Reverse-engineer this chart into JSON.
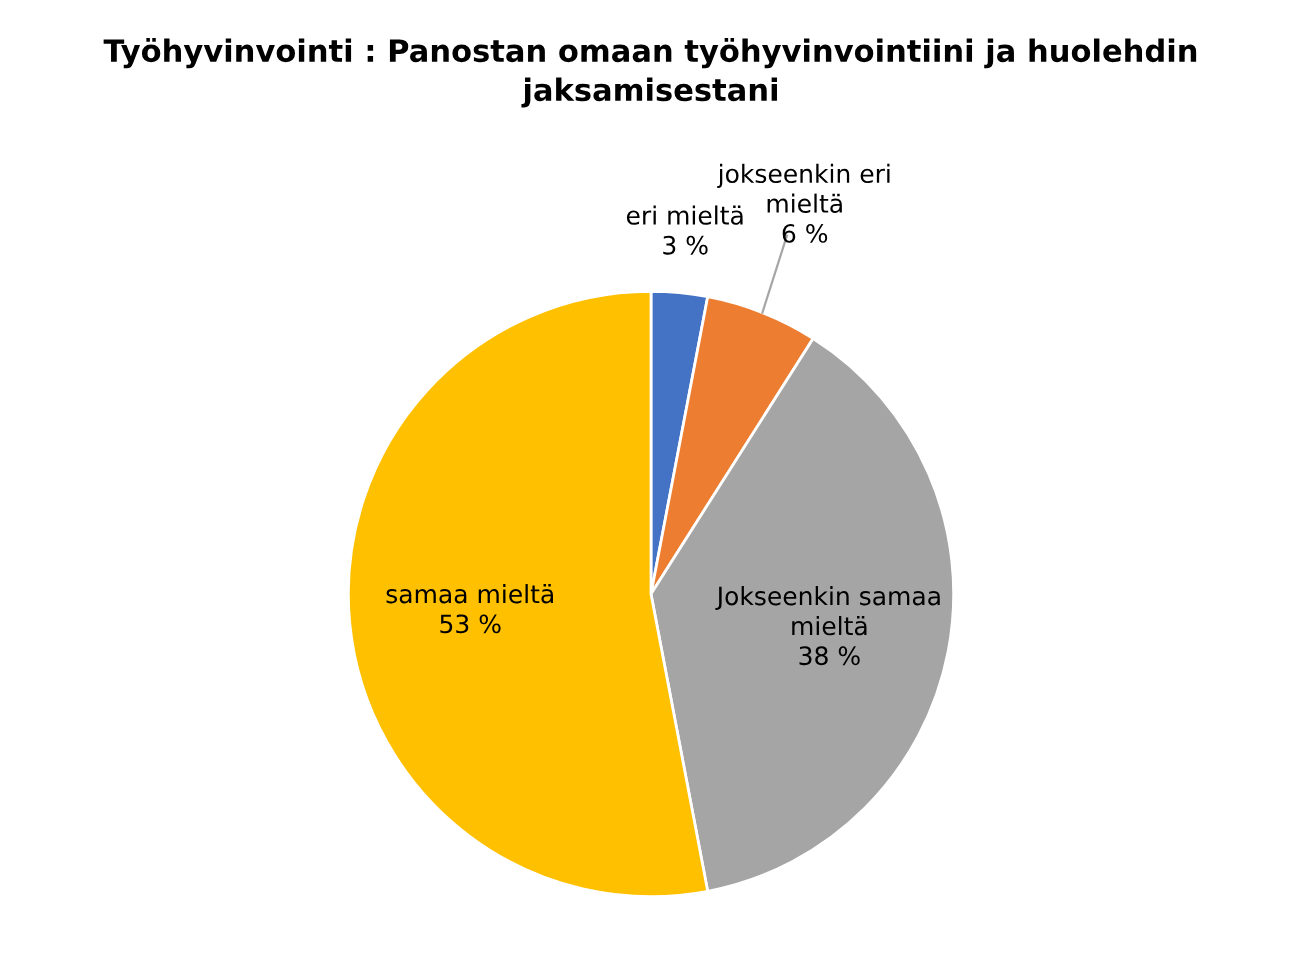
{
  "chart_data": {
    "type": "pie",
    "title": "Työhyvinvointi : Panostan omaan työhyvinvointiini ja huolehdin jaksamisestani",
    "categories": [
      "eri mieltä",
      "jokseenkin eri mieltä",
      "Jokseenkin samaa mieltä",
      "samaa mieltä"
    ],
    "values": [
      3,
      6,
      38,
      53
    ],
    "value_labels": [
      "3 %",
      "6 %",
      "38 %",
      "53 %"
    ],
    "colors": [
      "#4472c4",
      "#ed7d31",
      "#a5a5a5",
      "#ffc000"
    ],
    "legend": false
  }
}
